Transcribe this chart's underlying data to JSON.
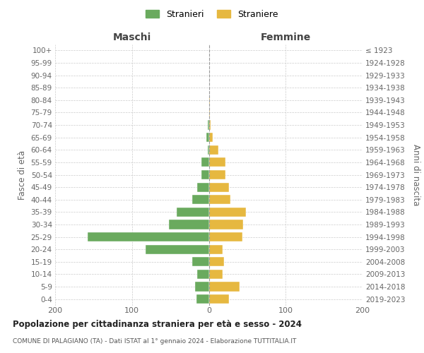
{
  "age_groups": [
    "100+",
    "95-99",
    "90-94",
    "85-89",
    "80-84",
    "75-79",
    "70-74",
    "65-69",
    "60-64",
    "55-59",
    "50-54",
    "45-49",
    "40-44",
    "35-39",
    "30-34",
    "25-29",
    "20-24",
    "15-19",
    "10-14",
    "5-9",
    "0-4"
  ],
  "birth_years": [
    "≤ 1923",
    "1924-1928",
    "1929-1933",
    "1934-1938",
    "1939-1943",
    "1944-1948",
    "1949-1953",
    "1954-1958",
    "1959-1963",
    "1964-1968",
    "1969-1973",
    "1974-1978",
    "1979-1983",
    "1984-1988",
    "1989-1993",
    "1994-1998",
    "1999-2003",
    "2004-2008",
    "2009-2013",
    "2014-2018",
    "2019-2023"
  ],
  "males": [
    0,
    0,
    0,
    0,
    0,
    0,
    1,
    3,
    1,
    10,
    10,
    15,
    22,
    42,
    52,
    158,
    82,
    22,
    15,
    18,
    16
  ],
  "females": [
    0,
    0,
    0,
    0,
    1,
    1,
    2,
    5,
    12,
    22,
    22,
    26,
    28,
    48,
    45,
    44,
    18,
    20,
    18,
    40,
    26
  ],
  "male_color": "#6aaa5e",
  "female_color": "#e6b840",
  "grid_color": "#cccccc",
  "title": "Popolazione per cittadinanza straniera per età e sesso - 2024",
  "subtitle": "COMUNE DI PALAGIANO (TA) - Dati ISTAT al 1° gennaio 2024 - Elaborazione TUTTITALIA.IT",
  "header_left": "Maschi",
  "header_right": "Femmine",
  "ylabel_left": "Fasce di età",
  "ylabel_right": "Anni di nascita",
  "legend_males": "Stranieri",
  "legend_females": "Straniere",
  "xlim": 200
}
